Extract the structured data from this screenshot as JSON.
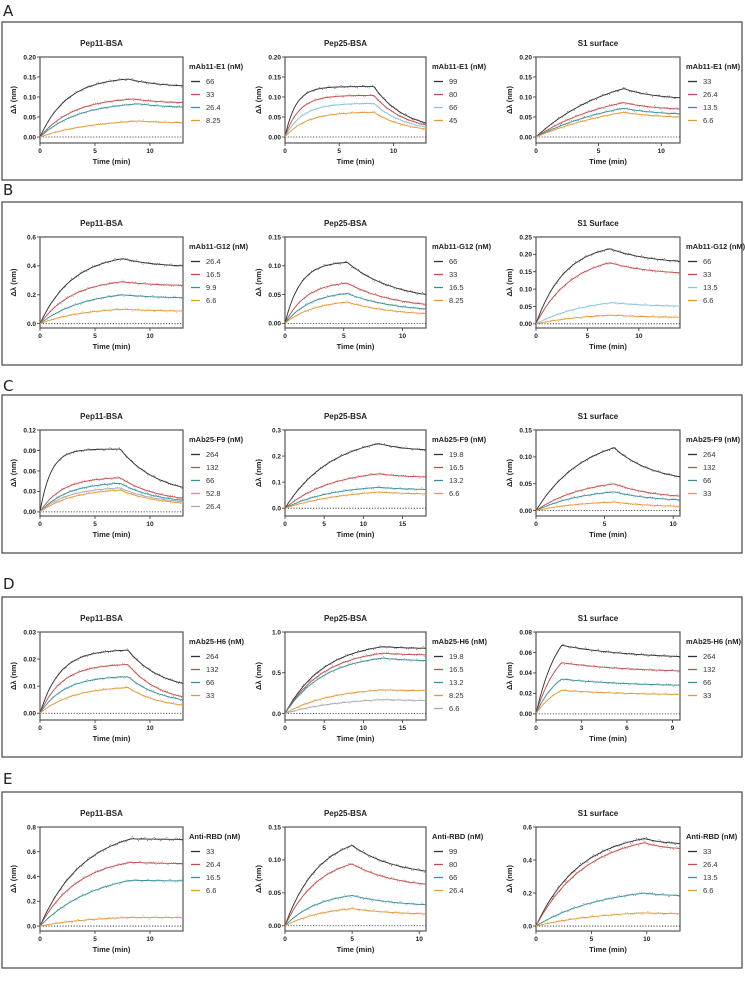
{
  "figure": {
    "panels": [
      {
        "label": "A",
        "charts": [
          0,
          1,
          2
        ]
      },
      {
        "label": "B",
        "charts": [
          3,
          4,
          5
        ]
      },
      {
        "label": "C",
        "charts": [
          6,
          7,
          8
        ]
      },
      {
        "label": "D",
        "charts": [
          9,
          10,
          11
        ]
      },
      {
        "label": "E",
        "charts": [
          12,
          13,
          14
        ]
      }
    ],
    "colors": {
      "black": "#333333",
      "red": "#c0504d",
      "teal": "#3a8f9c",
      "orange": "#e39a3b",
      "gray": "#aaaaaa",
      "lightblue": "#86c5d6"
    }
  },
  "chart_data": [
    {
      "type": "line",
      "title": "Pep11-BSA",
      "xlabel": "Time (min)",
      "ylabel": "Δλ (nm)",
      "legend_title": "mAb11-E1 (nM)",
      "legend": "right",
      "xlim": [
        0,
        13
      ],
      "xticks": [
        0,
        5,
        10
      ],
      "ylim": [
        -0.015,
        0.2
      ],
      "yticks": [
        "0.00",
        "0.05",
        "0.10",
        "0.15",
        "0.20"
      ],
      "series": [
        {
          "name": "66",
          "color": "#333333",
          "plateau": 0.145,
          "t_switch": 8,
          "end": 0.128,
          "tau": 2.5
        },
        {
          "name": "33",
          "color": "#c0504d",
          "plateau": 0.095,
          "t_switch": 8.5,
          "end": 0.086,
          "tau": 3
        },
        {
          "name": "26.4",
          "color": "#3a8f9c",
          "plateau": 0.083,
          "t_switch": 9,
          "end": 0.075,
          "tau": 3.5
        },
        {
          "name": "8.25",
          "color": "#e39a3b",
          "plateau": 0.04,
          "t_switch": 9,
          "end": 0.036,
          "tau": 5
        }
      ]
    },
    {
      "type": "line",
      "title": "Pep25-BSA",
      "xlabel": "Time (min)",
      "ylabel": "Δλ (nm)",
      "legend_title": "mAb11-E1 (nM)",
      "legend": "right",
      "xlim": [
        0,
        13
      ],
      "xticks": [
        0,
        5,
        10
      ],
      "ylim": [
        -0.015,
        0.2
      ],
      "yticks": [
        "0.00",
        "0.05",
        "0.10",
        "0.15",
        "0.20"
      ],
      "series": [
        {
          "name": "99",
          "color": "#333333",
          "plateau": 0.126,
          "t_switch": 8.2,
          "end": 0.035,
          "tau": 1
        },
        {
          "name": "80",
          "color": "#c0504d",
          "plateau": 0.104,
          "t_switch": 8.2,
          "end": 0.03,
          "tau": 1.3
        },
        {
          "name": "66",
          "color": "#86c5d6",
          "plateau": 0.084,
          "t_switch": 8.2,
          "end": 0.025,
          "tau": 1.6
        },
        {
          "name": "45",
          "color": "#e39a3b",
          "plateau": 0.062,
          "t_switch": 8.2,
          "end": 0.02,
          "tau": 2
        }
      ]
    },
    {
      "type": "line",
      "title": "S1 surface",
      "xlabel": "Time (min)",
      "ylabel": "Δλ (nm)",
      "legend_title": "mAb11-E1 (nM)",
      "legend": "right",
      "xlim": [
        0,
        11.5
      ],
      "xticks": [
        0,
        5,
        10
      ],
      "ylim": [
        -0.015,
        0.2
      ],
      "yticks": [
        "0.00",
        "0.05",
        "0.10",
        "0.15",
        "0.20"
      ],
      "series": [
        {
          "name": "33",
          "color": "#333333",
          "plateau": 0.121,
          "t_switch": 7,
          "end": 0.098,
          "tau": 6
        },
        {
          "name": "26.4",
          "color": "#c0504d",
          "plateau": 0.086,
          "t_switch": 7,
          "end": 0.07,
          "tau": 6
        },
        {
          "name": "13.5",
          "color": "#3a8f9c",
          "plateau": 0.072,
          "t_switch": 7,
          "end": 0.058,
          "tau": 7
        },
        {
          "name": "6.6",
          "color": "#e39a3b",
          "plateau": 0.062,
          "t_switch": 7,
          "end": 0.05,
          "tau": 8
        }
      ]
    },
    {
      "type": "line",
      "title": "Pep11-BSA",
      "xlabel": "Time (min)",
      "ylabel": "Δλ (nm)",
      "legend_title": "mAb11-G12 (nM)",
      "legend": "right",
      "xlim": [
        0,
        13
      ],
      "xticks": [
        0,
        5,
        10
      ],
      "ylim": [
        -0.03,
        0.6
      ],
      "yticks": [
        "0.0",
        "0.2",
        "0.4",
        "0.6"
      ],
      "series": [
        {
          "name": "26.4",
          "color": "#333333",
          "plateau": 0.45,
          "t_switch": 7.5,
          "end": 0.4,
          "tau": 3
        },
        {
          "name": "16.5",
          "color": "#c0504d",
          "plateau": 0.29,
          "t_switch": 7.5,
          "end": 0.265,
          "tau": 3
        },
        {
          "name": "9.9",
          "color": "#3a8f9c",
          "plateau": 0.2,
          "t_switch": 7.5,
          "end": 0.18,
          "tau": 4
        },
        {
          "name": "6.6",
          "color": "#e39a3b",
          "plateau": 0.1,
          "t_switch": 7.5,
          "end": 0.088,
          "tau": 4
        }
      ]
    },
    {
      "type": "line",
      "title": "Pep25-BSA",
      "xlabel": "Time (min)",
      "ylabel": "Δλ (nm)",
      "legend_title": "mAb11-G12 (nM)",
      "legend": "right",
      "xlim": [
        0,
        12
      ],
      "xticks": [
        0,
        5,
        10
      ],
      "ylim": [
        -0.008,
        0.15
      ],
      "yticks": [
        "0.00",
        "0.05",
        "0.10",
        "0.15"
      ],
      "series": [
        {
          "name": "66",
          "color": "#333333",
          "plateau": 0.106,
          "t_switch": 5.3,
          "end": 0.05,
          "tau": 1.3
        },
        {
          "name": "33",
          "color": "#c0504d",
          "plateau": 0.07,
          "t_switch": 5.3,
          "end": 0.033,
          "tau": 1.8
        },
        {
          "name": "16.5",
          "color": "#3a8f9c",
          "plateau": 0.052,
          "t_switch": 5.3,
          "end": 0.025,
          "tau": 2.2
        },
        {
          "name": "8.25",
          "color": "#e39a3b",
          "plateau": 0.037,
          "t_switch": 5.3,
          "end": 0.017,
          "tau": 2.5
        }
      ]
    },
    {
      "type": "line",
      "title": "S1  Surface",
      "xlabel": "Time (min)",
      "ylabel": "Δλ (nm)",
      "legend_title": "mAb11-G12 (nM)",
      "legend": "right",
      "xlim": [
        0,
        14
      ],
      "xticks": [
        0,
        5,
        10
      ],
      "ylim": [
        -0.012,
        0.25
      ],
      "yticks": [
        "0.00",
        "0.05",
        "0.10",
        "0.15",
        "0.20",
        "0.25"
      ],
      "series": [
        {
          "name": "66",
          "color": "#333333",
          "plateau": 0.216,
          "t_switch": 7.2,
          "end": 0.18,
          "tau": 2.8
        },
        {
          "name": "33",
          "color": "#c0504d",
          "plateau": 0.176,
          "t_switch": 7.2,
          "end": 0.147,
          "tau": 3.5
        },
        {
          "name": "13.5",
          "color": "#86c5d6",
          "plateau": 0.061,
          "t_switch": 7.4,
          "end": 0.051,
          "tau": 5
        },
        {
          "name": "6.6",
          "color": "#e39a3b",
          "plateau": 0.025,
          "t_switch": 7.4,
          "end": 0.019,
          "tau": 5
        }
      ]
    },
    {
      "type": "line",
      "title": "Pep11-BSA",
      "xlabel": "Time (min)",
      "ylabel": "Δλ (nm)",
      "legend_title": "mAb25-F9 (nM)",
      "legend": "right",
      "xlim": [
        0,
        13
      ],
      "xticks": [
        0,
        5,
        10
      ],
      "ylim": [
        -0.006,
        0.12
      ],
      "yticks": [
        "0.00",
        "0.03",
        "0.06",
        "0.09",
        "0.12"
      ],
      "series": [
        {
          "name": "264",
          "color": "#333333",
          "plateau": 0.092,
          "t_switch": 7.3,
          "end": 0.036,
          "tau": 1
        },
        {
          "name": "132",
          "color": "#c0504d",
          "plateau": 0.05,
          "t_switch": 7.3,
          "end": 0.02,
          "tau": 2
        },
        {
          "name": "66",
          "color": "#3a8f9c",
          "plateau": 0.042,
          "t_switch": 7.3,
          "end": 0.017,
          "tau": 2.5
        },
        {
          "name": "52.8",
          "color": "#e39a3b",
          "plateau": 0.032,
          "t_switch": 7.3,
          "end": 0.013,
          "tau": 3
        },
        {
          "name": "26.4",
          "color": "#aaaaaa",
          "plateau": 0.035,
          "t_switch": 7.3,
          "end": 0.015,
          "tau": 2.5
        }
      ]
    },
    {
      "type": "line",
      "title": "Pep25-BSA",
      "xlabel": "Time (min)",
      "ylabel": "Δλ (nm)",
      "legend_title": "mAb25-F9 (nM)",
      "legend": "right",
      "xlim": [
        0,
        18
      ],
      "xticks": [
        0,
        5,
        10,
        15
      ],
      "ylim": [
        -0.03,
        0.3
      ],
      "yticks": [
        "0.0",
        "0.1",
        "0.2",
        "0.3"
      ],
      "series": [
        {
          "name": "19.8",
          "color": "#333333",
          "plateau": 0.248,
          "t_switch": 12,
          "end": 0.224,
          "tau": 6
        },
        {
          "name": "16.5",
          "color": "#c0504d",
          "plateau": 0.132,
          "t_switch": 12,
          "end": 0.12,
          "tau": 6
        },
        {
          "name": "13.2",
          "color": "#3a8f9c",
          "plateau": 0.08,
          "t_switch": 12,
          "end": 0.072,
          "tau": 6
        },
        {
          "name": "6.6",
          "color": "#e39a3b",
          "plateau": 0.062,
          "t_switch": 12,
          "end": 0.055,
          "tau": 8
        }
      ]
    },
    {
      "type": "line",
      "title": "S1 surface",
      "xlabel": "Time (min)",
      "ylabel": "Δλ (nm)",
      "legend_title": "mAb25-F9 (nM)",
      "legend": "right",
      "xlim": [
        0,
        10.5
      ],
      "xticks": [
        0,
        5,
        10
      ],
      "ylim": [
        -0.01,
        0.15
      ],
      "yticks": [
        "0.00",
        "0.05",
        "0.10",
        "0.15"
      ],
      "series": [
        {
          "name": "264",
          "color": "#333333",
          "plateau": 0.117,
          "t_switch": 5.7,
          "end": 0.063,
          "tau": 3.5
        },
        {
          "name": "132",
          "color": "#c0504d",
          "plateau": 0.05,
          "t_switch": 5.7,
          "end": 0.027,
          "tau": 3.5
        },
        {
          "name": "66",
          "color": "#3a8f9c",
          "plateau": 0.035,
          "t_switch": 5.7,
          "end": 0.02,
          "tau": 3.5
        },
        {
          "name": "33",
          "color": "#e39a3b",
          "plateau": 0.016,
          "t_switch": 5.7,
          "end": 0.008,
          "tau": 3.5
        }
      ]
    },
    {
      "type": "line",
      "title": "Pep11-BSA",
      "xlabel": "Time (min)",
      "ylabel": "Δλ (nm)",
      "legend_title": "mAb25-H6 (nM)",
      "legend": "right",
      "xlim": [
        0,
        13
      ],
      "xticks": [
        0,
        5,
        10
      ],
      "ylim": [
        -0.0025,
        0.03
      ],
      "yticks": [
        "0.00",
        "0.01",
        "0.02",
        "0.03"
      ],
      "series": [
        {
          "name": "264",
          "color": "#333333",
          "plateau": 0.0233,
          "t_switch": 8,
          "end": 0.011,
          "tau": 1.8
        },
        {
          "name": "132",
          "color": "#c0504d",
          "plateau": 0.018,
          "t_switch": 8,
          "end": 0.006,
          "tau": 2
        },
        {
          "name": "66",
          "color": "#3a8f9c",
          "plateau": 0.0135,
          "t_switch": 8,
          "end": 0.005,
          "tau": 2.2
        },
        {
          "name": "33",
          "color": "#e39a3b",
          "plateau": 0.0095,
          "t_switch": 8,
          "end": 0.003,
          "tau": 3
        }
      ]
    },
    {
      "type": "line",
      "title": "Pep25-BSA",
      "xlabel": "Time (min)",
      "ylabel": "Δλ (nm)",
      "legend_title": "mAb25-H6 (nM)",
      "legend": "right",
      "xlim": [
        0,
        18
      ],
      "xticks": [
        0,
        5,
        10,
        15
      ],
      "ylim": [
        -0.08,
        1.0
      ],
      "yticks": [
        "0.0",
        "0.5",
        "1.0"
      ],
      "series": [
        {
          "name": "19.8",
          "color": "#333333",
          "plateau": 0.82,
          "t_switch": 12.5,
          "end": 0.8,
          "tau": 5
        },
        {
          "name": "16.5",
          "color": "#c0504d",
          "plateau": 0.74,
          "t_switch": 12.5,
          "end": 0.72,
          "tau": 5
        },
        {
          "name": "13.2",
          "color": "#3a8f9c",
          "plateau": 0.68,
          "t_switch": 12.5,
          "end": 0.65,
          "tau": 5
        },
        {
          "name": "8.25",
          "color": "#e39a3b",
          "plateau": 0.29,
          "t_switch": 12.5,
          "end": 0.28,
          "tau": 6
        },
        {
          "name": "6.6",
          "color": "#aaaaaa",
          "plateau": 0.17,
          "t_switch": 12.5,
          "end": 0.16,
          "tau": 7
        }
      ]
    },
    {
      "type": "line",
      "title": "S1 surface",
      "xlabel": "Time (min)",
      "ylabel": "Δλ (nm)",
      "legend_title": "mAb25-H6 (nM)",
      "legend": "right",
      "xlim": [
        0,
        9.5
      ],
      "xticks": [
        0,
        3,
        6,
        9
      ],
      "ylim": [
        -0.006,
        0.08
      ],
      "yticks": [
        "0.00",
        "0.02",
        "0.04",
        "0.06",
        "0.08"
      ],
      "series": [
        {
          "name": "264",
          "color": "#333333",
          "plateau": 0.067,
          "t_switch": 1.7,
          "end": 0.056,
          "tau": 1.5
        },
        {
          "name": "132",
          "color": "#c0504d",
          "plateau": 0.05,
          "t_switch": 1.7,
          "end": 0.042,
          "tau": 1.5
        },
        {
          "name": "66",
          "color": "#3a8f9c",
          "plateau": 0.034,
          "t_switch": 1.7,
          "end": 0.028,
          "tau": 1.5
        },
        {
          "name": "33",
          "color": "#e39a3b",
          "plateau": 0.023,
          "t_switch": 1.7,
          "end": 0.019,
          "tau": 1.5
        }
      ]
    },
    {
      "type": "line",
      "title": "Pep11-BSA",
      "xlabel": "Time (min)",
      "ylabel": "Δλ (nm)",
      "legend_title": "Anti-RBD (nM)",
      "legend": "right",
      "xlim": [
        0,
        13
      ],
      "xticks": [
        0,
        5,
        10
      ],
      "ylim": [
        -0.04,
        0.8
      ],
      "yticks": [
        "0.0",
        "0.2",
        "0.4",
        "0.6",
        "0.8"
      ],
      "series": [
        {
          "name": "33",
          "color": "#333333",
          "plateau": 0.705,
          "t_switch": 8.3,
          "end": 0.7,
          "tau": 4
        },
        {
          "name": "26.4",
          "color": "#c0504d",
          "plateau": 0.515,
          "t_switch": 8.3,
          "end": 0.505,
          "tau": 3.5
        },
        {
          "name": "16.5",
          "color": "#3a8f9c",
          "plateau": 0.37,
          "t_switch": 8.3,
          "end": 0.365,
          "tau": 5
        },
        {
          "name": "6.6",
          "color": "#e39a3b",
          "plateau": 0.07,
          "t_switch": 8.3,
          "end": 0.07,
          "tau": 5
        }
      ]
    },
    {
      "type": "line",
      "title": "Pep25-BSA",
      "xlabel": "Time (min)",
      "ylabel": "Δλ (nm)",
      "legend_title": "Anti-RBD (nM)",
      "legend": "right",
      "xlim": [
        0,
        10.5
      ],
      "xticks": [
        0,
        5,
        10
      ],
      "ylim": [
        -0.008,
        0.15
      ],
      "yticks": [
        "0.00",
        "0.05",
        "0.10",
        "0.15"
      ],
      "series": [
        {
          "name": "99",
          "color": "#333333",
          "plateau": 0.122,
          "t_switch": 5,
          "end": 0.083,
          "tau": 2.5
        },
        {
          "name": "80",
          "color": "#c0504d",
          "plateau": 0.094,
          "t_switch": 5,
          "end": 0.063,
          "tau": 2.5
        },
        {
          "name": "66",
          "color": "#3a8f9c",
          "plateau": 0.046,
          "t_switch": 5,
          "end": 0.032,
          "tau": 2.5
        },
        {
          "name": "26.4",
          "color": "#e39a3b",
          "plateau": 0.026,
          "t_switch": 5,
          "end": 0.018,
          "tau": 3
        }
      ]
    },
    {
      "type": "line",
      "title": "S1 surface",
      "xlabel": "Time (min)",
      "ylabel": "Δλ (nm)",
      "legend_title": "Anti-RBD (nM)",
      "legend": "right",
      "xlim": [
        0,
        13
      ],
      "xticks": [
        0,
        5,
        10
      ],
      "ylim": [
        -0.03,
        0.6
      ],
      "yticks": [
        "0.0",
        "0.2",
        "0.4",
        "0.6"
      ],
      "series": [
        {
          "name": "33",
          "color": "#333333",
          "plateau": 0.53,
          "t_switch": 9.8,
          "end": 0.5,
          "tau": 4
        },
        {
          "name": "26.4",
          "color": "#c0504d",
          "plateau": 0.505,
          "t_switch": 9.8,
          "end": 0.47,
          "tau": 4.5
        },
        {
          "name": "13.5",
          "color": "#3a8f9c",
          "plateau": 0.2,
          "t_switch": 9.8,
          "end": 0.185,
          "tau": 6
        },
        {
          "name": "6.6",
          "color": "#e39a3b",
          "plateau": 0.08,
          "t_switch": 9.8,
          "end": 0.075,
          "tau": 6
        }
      ]
    }
  ]
}
